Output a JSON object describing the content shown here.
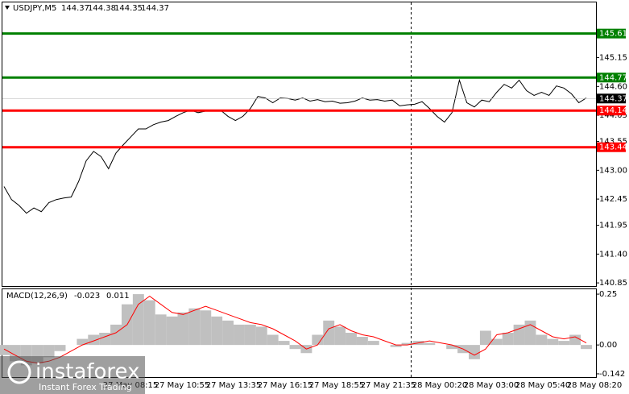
{
  "chart_data": [
    {
      "type": "line",
      "title": "USDJPY,M5",
      "ohlc": [
        144.37,
        144.38,
        144.35,
        144.37
      ],
      "color": "#000000",
      "values": [
        142.69,
        142.44,
        142.33,
        142.18,
        142.28,
        142.21,
        142.38,
        142.44,
        142.47,
        142.49,
        142.79,
        143.18,
        143.36,
        143.26,
        143.03,
        143.33,
        143.49,
        143.64,
        143.79,
        143.79,
        143.87,
        143.92,
        143.95,
        144.03,
        144.1,
        144.15,
        144.1,
        144.13,
        144.13,
        144.15,
        144.03,
        143.95,
        144.03,
        144.18,
        144.41,
        144.38,
        144.29,
        144.38,
        144.37,
        144.34,
        144.38,
        144.32,
        144.35,
        144.31,
        144.32,
        144.28,
        144.29,
        144.32,
        144.38,
        144.34,
        144.35,
        144.32,
        144.34,
        144.23,
        144.25,
        144.26,
        144.31,
        144.18,
        144.03,
        143.92,
        144.1,
        144.72,
        144.29,
        144.21,
        144.34,
        144.31,
        144.49,
        144.64,
        144.57,
        144.72,
        144.52,
        144.43,
        144.49,
        144.43,
        144.61,
        144.57,
        144.46,
        144.29,
        144.38
      ],
      "ylim": [
        140.79,
        146.22
      ],
      "yticks": [
        145.15,
        {
          "value": 144.6,
          "label": "144.60"
        },
        144.05,
        143.55,
        {
          "value": 143.0,
          "label": "143.00"
        },
        142.45,
        141.95,
        {
          "value": 141.4,
          "label": "141.40"
        },
        140.85
      ],
      "levels": [
        {
          "value": 145.61,
          "color": "#008000"
        },
        {
          "value": 144.77,
          "color": "#008000"
        },
        {
          "value": 144.14,
          "color": "#ff0000"
        },
        {
          "value": 143.44,
          "color": "#ff0000"
        }
      ],
      "current_price": 144.37,
      "time_labels": [
        "27 May 08:15",
        "27 May 10:55",
        "27 May 13:35",
        "27 May 16:15",
        "27 May 18:55",
        "27 May 21:35",
        "28 May 00:20",
        "28 May 03:00",
        "28 May 05:40",
        "28 May 08:20"
      ]
    },
    {
      "type": "macd",
      "title": "MACD(12,26,9)",
      "indicator_values": [
        -0.023,
        0.011
      ],
      "series": [
        {
          "name": "MACD",
          "color": "#c0c0c0",
          "values": [
            -0.05,
            -0.08,
            -0.1,
            -0.09,
            -0.06,
            -0.03,
            0.0,
            0.03,
            0.05,
            0.06,
            0.1,
            0.2,
            0.25,
            0.22,
            0.15,
            0.14,
            0.16,
            0.18,
            0.17,
            0.14,
            0.12,
            0.1,
            0.1,
            0.09,
            0.05,
            0.02,
            -0.02,
            -0.04,
            0.05,
            0.12,
            0.09,
            0.06,
            0.04,
            0.02,
            0.0,
            -0.01,
            0.01,
            0.02,
            0.01,
            0.0,
            -0.02,
            -0.04,
            -0.07,
            0.07,
            0.03,
            0.06,
            0.1,
            0.12,
            0.05,
            0.03,
            0.02,
            0.05,
            -0.02
          ]
        },
        {
          "name": "Signal",
          "color": "#ff0000",
          "values": [
            -0.02,
            -0.05,
            -0.08,
            -0.09,
            -0.08,
            -0.06,
            -0.03,
            0.0,
            0.02,
            0.04,
            0.06,
            0.1,
            0.2,
            0.24,
            0.2,
            0.16,
            0.15,
            0.17,
            0.19,
            0.17,
            0.15,
            0.13,
            0.11,
            0.1,
            0.08,
            0.05,
            0.02,
            -0.02,
            0.0,
            0.08,
            0.1,
            0.07,
            0.05,
            0.04,
            0.02,
            0.0,
            0.0,
            0.01,
            0.02,
            0.01,
            0.0,
            -0.02,
            -0.05,
            -0.02,
            0.05,
            0.06,
            0.08,
            0.1,
            0.07,
            0.04,
            0.03,
            0.04,
            0.01
          ]
        }
      ],
      "ylim": [
        -0.158,
        0.278
      ],
      "yticks": [
        0.25,
        {
          "value": 0.0,
          "label": "0.00"
        },
        -0.142
      ]
    }
  ],
  "watermark": {
    "brand": "instaforex",
    "tagline": "Instant Forex Trading"
  }
}
